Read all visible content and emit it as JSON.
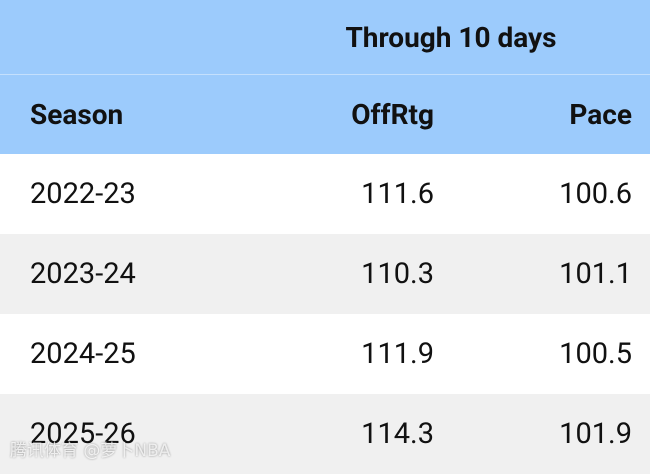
{
  "table": {
    "group_header": "Through 10 days",
    "columns": [
      "Season",
      "OffRtg",
      "Pace"
    ],
    "rows": [
      [
        "2022-23",
        111.6,
        100.6
      ],
      [
        "2023-24",
        110.3,
        101.1
      ],
      [
        "2024-25",
        111.9,
        100.5
      ],
      [
        "2025-26",
        114.3,
        101.9
      ]
    ]
  },
  "watermark": "腾讯体育 @萝卜NBA"
}
